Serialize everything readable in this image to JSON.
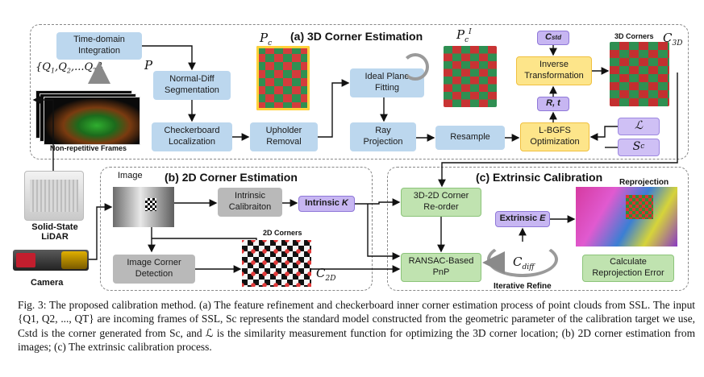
{
  "sections": {
    "a": "(a) 3D Corner Estimation",
    "b": "(b) 2D Corner Estimation",
    "c": "(c)  Extrinsic Calibration"
  },
  "section_a": {
    "time_domain": "Time-domain\nIntegration",
    "frames_set": "{Q1,Q2,...QT}",
    "P": "P",
    "normal_diff": "Normal-Diff\nSegmentation",
    "checkerboard_loc": "Checkerboard\nLocalization",
    "upholder": "Upholder\nRemoval",
    "Pc": "Pc",
    "ideal_plane": "Ideal Plane\nFitting",
    "ray": "Ray\nProjection",
    "Pc_prime": "Pc'",
    "resample": "Resample",
    "cstd_box": "Cstd",
    "inverse": "Inverse\nTransformation",
    "rt_box": "R, t",
    "lbgfs": "L-BGFS\nOptimization",
    "L_box": "ℒ",
    "Sc_box": "Sc",
    "corners3d": "3D Corners",
    "C3D": "C3D",
    "nonrep": "Non-repetitive Frames"
  },
  "section_b": {
    "image": "Image",
    "intrinsic_calib": "Intrinsic\nCalibraiton",
    "intrinsic_k": "Intrinsic K",
    "corners2d": "2D Corners",
    "image_corner": "Image Corner\nDetection",
    "C2D": "C2D"
  },
  "section_c": {
    "reorder": "3D-2D Corner\nRe-order",
    "ransac": "RANSAC-Based\nPnP",
    "cdiff": "Cdiff",
    "iterative": "Iterative Refine",
    "extrinsic": "Extrinsic E",
    "reprojection": "Reprojection",
    "calc": "Calculate\nReprojection Error"
  },
  "devices": {
    "lidar": "Solid-State\nLiDAR",
    "camera": "Camera"
  },
  "caption": "Fig. 3: The proposed calibration method. (a) The feature refinement and checkerboard inner corner estimation process of point clouds from SSL. The input {Q1, Q2, ..., QT} are incoming frames of SSL, Sc represents the standard model constructed from the geometric parameter of the calibration target we use, Cstd is the corner generated from Sc, and ℒ is the similarity measurement function for optimizing the 3D corner location; (b) 2D corner estimation from images; (c) The extrinsic calibration process.",
  "colors": {
    "process": "#bcd7ee",
    "optim": "#fde58a",
    "param": "#c7b6f2",
    "image_proc": "#b9b9b9",
    "extrinsic_proc": "#c0e3b0"
  }
}
